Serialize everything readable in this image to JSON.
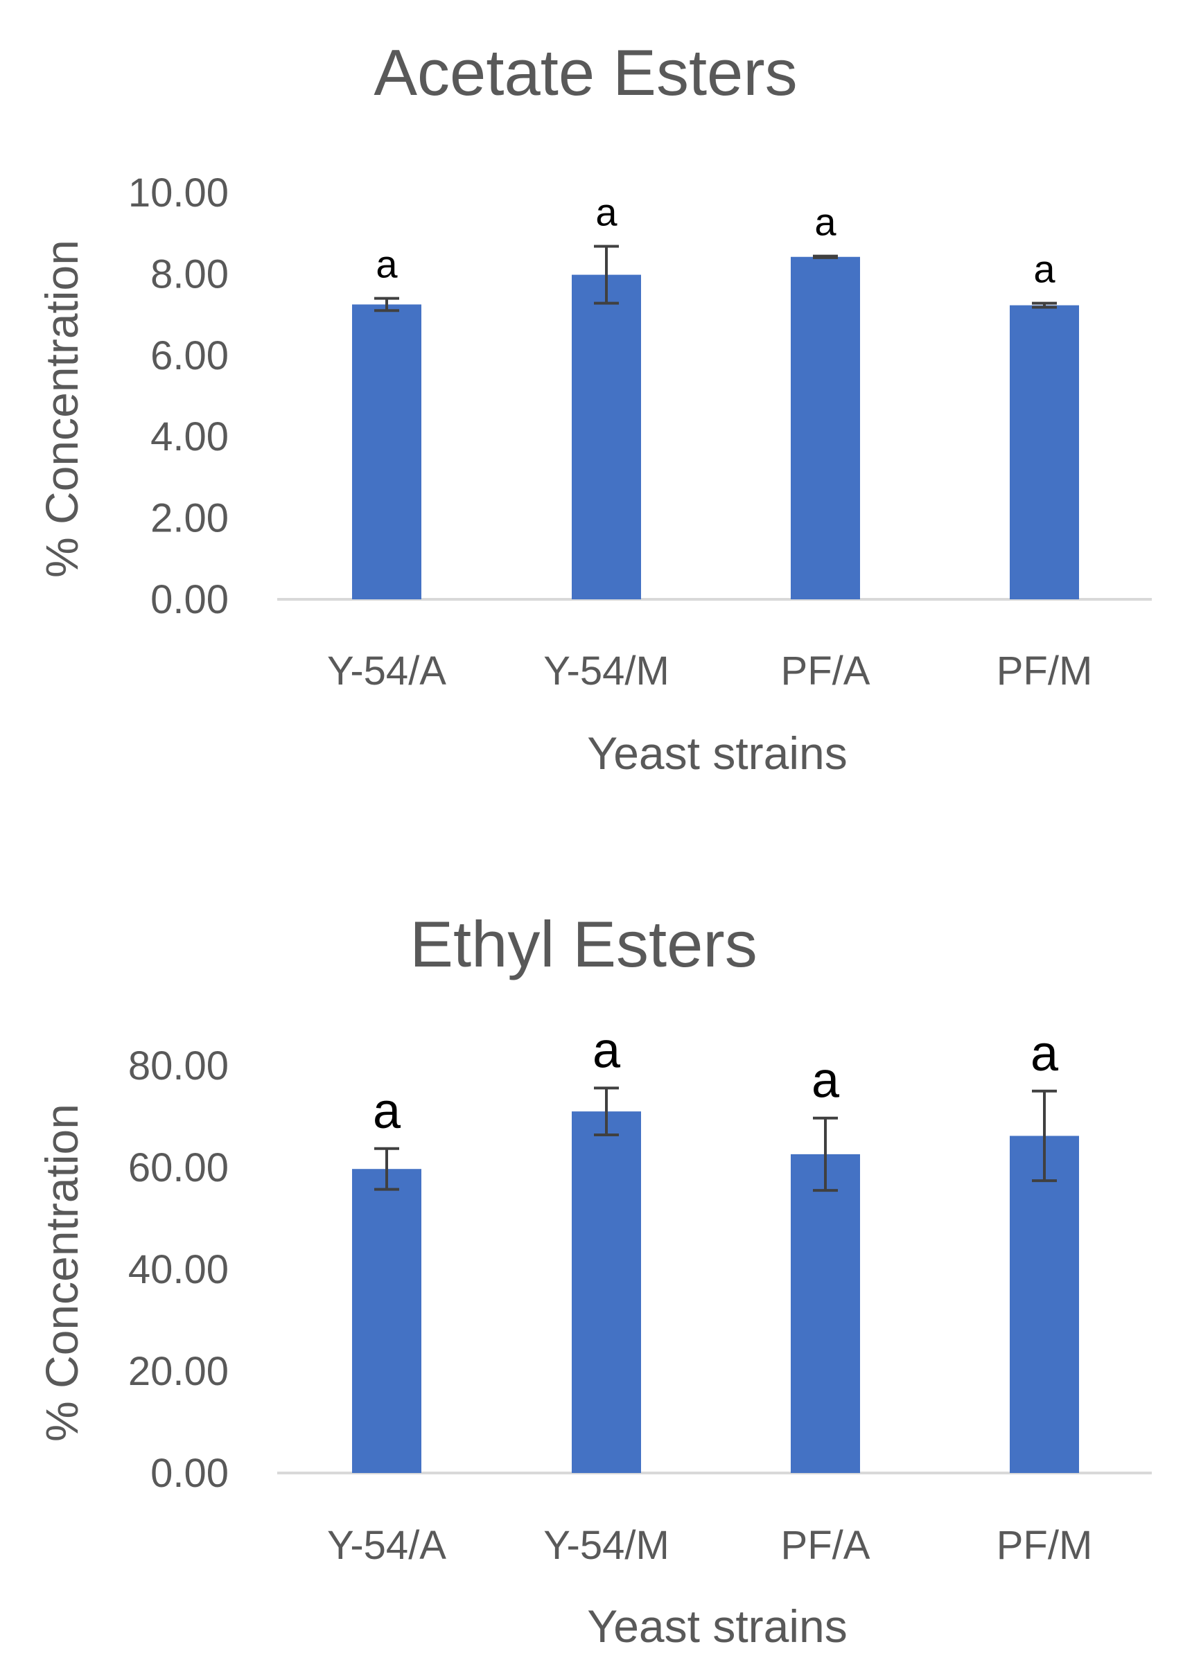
{
  "colors": {
    "bar": "#4472C4",
    "error_bar": "#404040",
    "text": "#595959",
    "axis_line": "#d9d9d9",
    "significance": "#000000"
  },
  "chart_data": [
    {
      "type": "bar",
      "title": "Acetate Esters",
      "xlabel": "Yeast strains",
      "ylabel": "% Concentration",
      "ylim": [
        0,
        10
      ],
      "yticks": [
        "0.00",
        "2.00",
        "4.00",
        "6.00",
        "8.00",
        "10.00"
      ],
      "categories": [
        "Y-54/A",
        "Y-54/M",
        "PF/A",
        "PF/M"
      ],
      "values": [
        7.25,
        7.98,
        8.42,
        7.23
      ],
      "errors": [
        0.15,
        0.7,
        0.02,
        0.05
      ],
      "significance": [
        "a",
        "a",
        "a",
        "a"
      ],
      "grid": false
    },
    {
      "type": "bar",
      "title": "Ethyl Esters",
      "xlabel": "Yeast strains",
      "ylabel": "% Concentration",
      "ylim": [
        0,
        80
      ],
      "yticks": [
        "0.00",
        "20.00",
        "40.00",
        "60.00",
        "80.00"
      ],
      "categories": [
        "Y-54/A",
        "Y-54/M",
        "PF/A",
        "PF/M"
      ],
      "values": [
        59.7,
        71.0,
        62.6,
        66.2
      ],
      "errors": [
        4.0,
        4.6,
        7.1,
        8.8
      ],
      "significance": [
        "a",
        "a",
        "a",
        "a"
      ],
      "grid": false
    }
  ]
}
